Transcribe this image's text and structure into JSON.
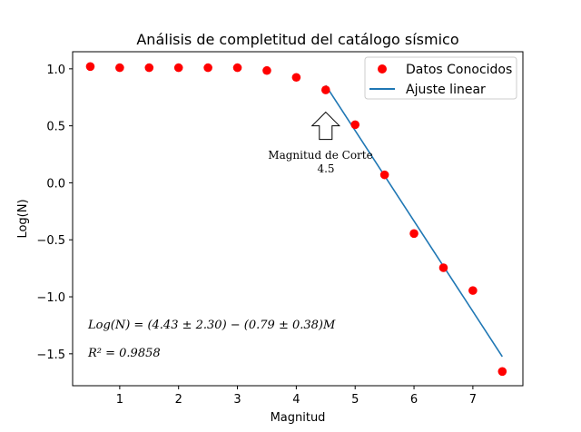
{
  "chart_data": {
    "type": "scatter",
    "title": "Análisis de completitud del catálogo sísmico",
    "xlabel": "Magnitud",
    "ylabel": "Log(N)",
    "xlim": [
      0.2,
      7.85
    ],
    "ylim": [
      -1.78,
      1.15
    ],
    "xticks": [
      1,
      2,
      3,
      4,
      5,
      6,
      7
    ],
    "yticks": [
      1.0,
      0.5,
      0.0,
      -0.5,
      -1.0,
      -1.5
    ],
    "ytick_labels": [
      "1.0",
      "0.5",
      "0.0",
      "−0.5",
      "−1.0",
      "−1.5"
    ],
    "grid": false,
    "legend_position": "top-right",
    "series": [
      {
        "name": "Datos Conocidos",
        "kind": "scatter",
        "color": "#ff0000",
        "x": [
          0.5,
          1.0,
          1.5,
          2.0,
          2.5,
          3.0,
          3.5,
          4.0,
          4.5,
          5.0,
          5.5,
          6.0,
          6.5,
          7.0,
          7.5
        ],
        "y": [
          1.02,
          1.01,
          1.01,
          1.01,
          1.01,
          1.01,
          0.985,
          0.925,
          0.815,
          0.51,
          0.07,
          -0.445,
          -0.745,
          -0.945,
          -1.655
        ]
      },
      {
        "name": "Ajuste linear",
        "kind": "line",
        "color": "#1f77b4",
        "x": [
          4.5,
          7.5
        ],
        "y": [
          0.855,
          -1.525
        ]
      }
    ],
    "annotations": {
      "arrow_target": {
        "x": 4.5,
        "y": 0.62
      },
      "cutoff_line1": "Magnitud de Corte",
      "cutoff_line2": "4.5",
      "equation": "Log(N) = (4.43 ± 2.30) − (0.79 ± 0.38)M",
      "r2": "R² = 0.9858"
    }
  }
}
